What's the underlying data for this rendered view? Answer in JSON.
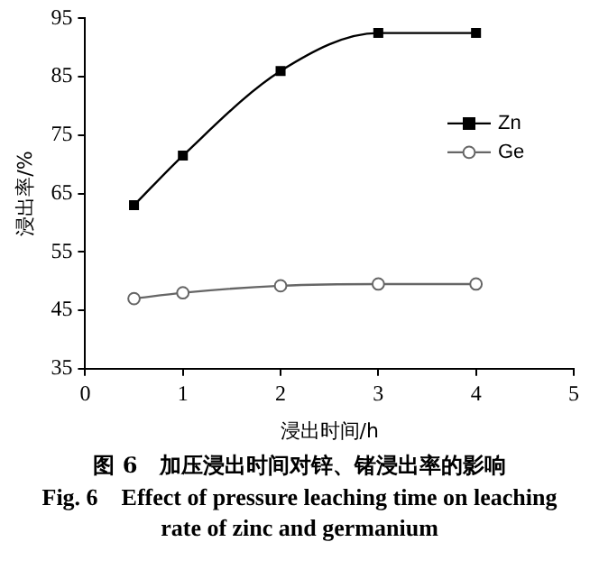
{
  "chart_data": {
    "type": "line",
    "title": "图 6　加压浸出时间对锌、锗浸出率的影响",
    "subtitle": "Fig. 6　Effect of pressure leaching time on leaching rate of zinc and germanium",
    "xlabel": "浸出时间/h",
    "ylabel": "浸出率/%",
    "xlim": [
      0,
      5
    ],
    "xticks": [
      0,
      1,
      2,
      3,
      4,
      5
    ],
    "ylim": [
      35,
      95
    ],
    "yticks": [
      35,
      45,
      55,
      65,
      75,
      85,
      95
    ],
    "grid": false,
    "legend": "right",
    "line_style": "solid",
    "series": [
      {
        "name": "Zn",
        "color": "#000000",
        "marker": "square",
        "x": [
          0.5,
          1,
          2,
          3,
          4
        ],
        "values": [
          63,
          71.5,
          86,
          92.5,
          92.5
        ]
      },
      {
        "name": "Ge",
        "color": "#666666",
        "marker": "circle",
        "x": [
          0.5,
          1,
          2,
          3,
          4
        ],
        "values": [
          47,
          48,
          49.2,
          49.5,
          49.5
        ]
      }
    ]
  }
}
